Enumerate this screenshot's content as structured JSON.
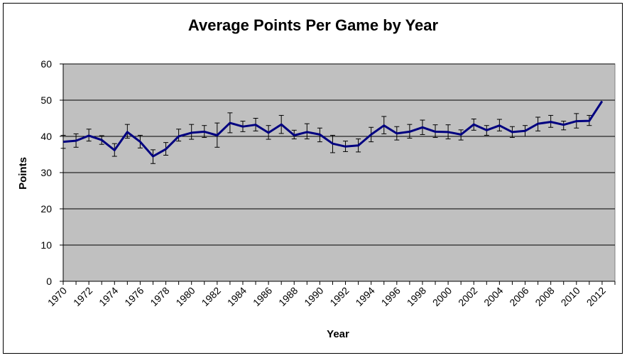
{
  "chart_data": {
    "type": "line",
    "title": "Average Points Per Game by Year",
    "xlabel": "Year",
    "ylabel": "Points",
    "ylim": [
      0,
      60
    ],
    "yticks": [
      0,
      10,
      20,
      30,
      40,
      50,
      60
    ],
    "xlim": [
      1970,
      2013
    ],
    "xticks": [
      "1970",
      "1972",
      "1974",
      "1976",
      "1978",
      "1980",
      "1982",
      "1984",
      "1986",
      "1988",
      "1990",
      "1992",
      "1994",
      "1996",
      "1998",
      "2000",
      "2002",
      "2004",
      "2006",
      "2008",
      "2010",
      "2012"
    ],
    "grid": true,
    "legend": "none",
    "colors": {
      "plot_background": "#c0c0c0",
      "series": "#000080",
      "gridline": "#000000"
    },
    "series": [
      {
        "x": [
          1970,
          1971,
          1972,
          1973,
          1974,
          1975,
          1976,
          1977,
          1978,
          1979,
          1980,
          1981,
          1982,
          1983,
          1984,
          1985,
          1986,
          1987,
          1988,
          1989,
          1990,
          1991,
          1992,
          1993,
          1994,
          1995,
          1996,
          1997,
          1998,
          1999,
          2000,
          2001,
          2002,
          2003,
          2004,
          2005,
          2006,
          2007,
          2008,
          2009,
          2010,
          2011,
          2012,
          2013
        ],
        "y": [
          38.5,
          38.8,
          40.2,
          39.0,
          36.2,
          41.2,
          38.5,
          34.5,
          36.5,
          40.0,
          41.0,
          41.3,
          40.3,
          43.7,
          42.7,
          43.2,
          41.0,
          43.3,
          40.3,
          41.2,
          40.5,
          38.0,
          37.2,
          37.5,
          40.5,
          43.0,
          40.8,
          41.3,
          42.5,
          41.3,
          41.2,
          40.5,
          43.3,
          41.7,
          43.0,
          41.2,
          41.5,
          43.5,
          44.0,
          43.2,
          44.2,
          44.3,
          49.7,
          null
        ],
        "error_low": [
          36.7,
          37.0,
          38.7,
          37.8,
          34.5,
          39.5,
          36.8,
          32.5,
          34.8,
          38.7,
          39.2,
          39.7,
          37.0,
          41.0,
          41.3,
          41.5,
          39.2,
          40.8,
          39.3,
          39.3,
          38.5,
          35.5,
          35.8,
          35.7,
          38.5,
          40.7,
          39.0,
          39.5,
          40.5,
          39.7,
          39.3,
          39.0,
          41.7,
          40.3,
          41.5,
          39.7,
          40.0,
          41.5,
          42.5,
          41.8,
          42.3,
          43.0,
          null,
          null
        ],
        "error_high": [
          40.3,
          40.7,
          42.0,
          40.2,
          38.0,
          43.3,
          40.3,
          36.3,
          38.3,
          42.0,
          43.3,
          43.0,
          43.7,
          46.5,
          44.2,
          45.0,
          43.0,
          45.8,
          41.7,
          43.5,
          42.3,
          40.3,
          38.7,
          39.3,
          42.5,
          45.5,
          42.7,
          43.3,
          44.5,
          43.2,
          43.2,
          41.8,
          44.8,
          43.0,
          44.7,
          42.7,
          43.0,
          45.3,
          45.8,
          44.2,
          46.3,
          45.8,
          null,
          null
        ]
      }
    ]
  }
}
